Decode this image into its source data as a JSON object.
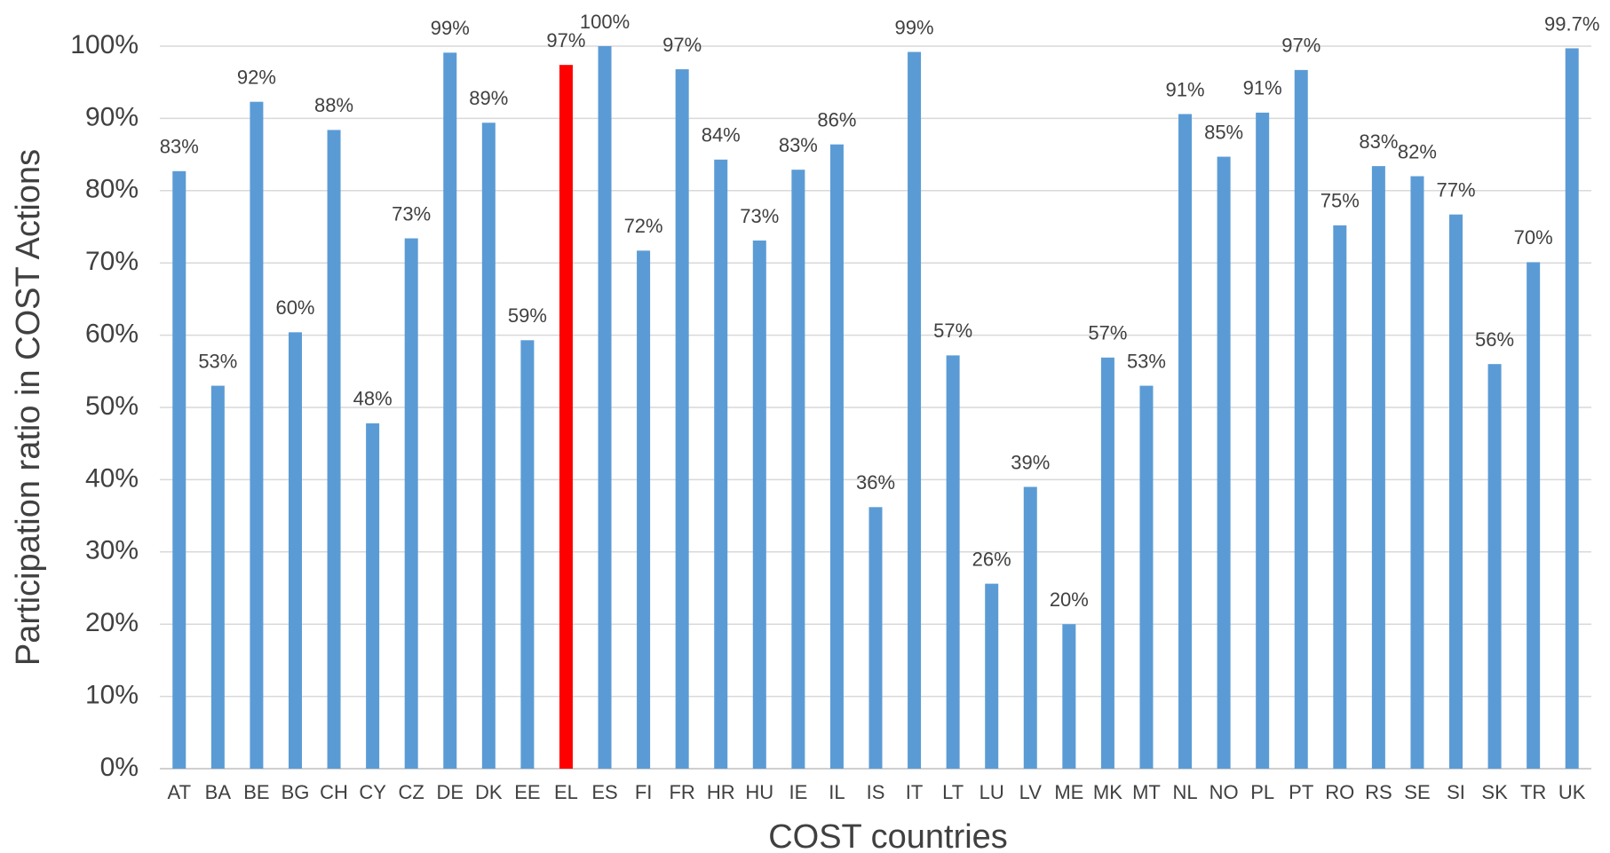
{
  "chart_data": {
    "type": "bar",
    "xlabel": "COST countries",
    "ylabel": "Participation ratio in COST Actions",
    "categories": [
      "AT",
      "BA",
      "BE",
      "BG",
      "CH",
      "CY",
      "CZ",
      "DE",
      "DK",
      "EE",
      "EL",
      "ES",
      "FI",
      "FR",
      "HR",
      "HU",
      "IE",
      "IL",
      "IS",
      "IT",
      "LT",
      "LU",
      "LV",
      "ME",
      "MK",
      "MT",
      "NL",
      "NO",
      "PL",
      "PT",
      "RO",
      "RS",
      "SE",
      "SI",
      "SK",
      "TR",
      "UK"
    ],
    "values": [
      82.7,
      53,
      92.3,
      60.4,
      88.4,
      47.8,
      73.4,
      99.1,
      89.4,
      59.3,
      97.4,
      100,
      71.7,
      96.8,
      84.3,
      73.1,
      82.9,
      86.4,
      36.2,
      99.2,
      57.2,
      25.6,
      39,
      20,
      56.9,
      53,
      90.6,
      84.7,
      90.8,
      96.7,
      75.2,
      83.4,
      82,
      76.7,
      56,
      70.1,
      99.7
    ],
    "value_labels": [
      "83%",
      "53%",
      "92%",
      "60%",
      "88%",
      "48%",
      "73%",
      "99%",
      "89%",
      "59%",
      "97%",
      "100%",
      "72%",
      "97%",
      "84%",
      "73%",
      "83%",
      "86%",
      "36%",
      "99%",
      "57%",
      "26%",
      "39%",
      "20%",
      "57%",
      "53%",
      "91%",
      "85%",
      "91%",
      "97%",
      "75%",
      "83%",
      "82%",
      "77%",
      "56%",
      "70%",
      "99.7%"
    ],
    "colors": [
      "#5b9bd5",
      "#5b9bd5",
      "#5b9bd5",
      "#5b9bd5",
      "#5b9bd5",
      "#5b9bd5",
      "#5b9bd5",
      "#5b9bd5",
      "#5b9bd5",
      "#5b9bd5",
      "#ff0000",
      "#5b9bd5",
      "#5b9bd5",
      "#5b9bd5",
      "#5b9bd5",
      "#5b9bd5",
      "#5b9bd5",
      "#5b9bd5",
      "#5b9bd5",
      "#5b9bd5",
      "#5b9bd5",
      "#5b9bd5",
      "#5b9bd5",
      "#5b9bd5",
      "#5b9bd5",
      "#5b9bd5",
      "#5b9bd5",
      "#5b9bd5",
      "#5b9bd5",
      "#5b9bd5",
      "#5b9bd5",
      "#5b9bd5",
      "#5b9bd5",
      "#5b9bd5",
      "#5b9bd5",
      "#5b9bd5",
      "#5b9bd5"
    ],
    "ylim": [
      0,
      100
    ],
    "yticks": [
      {
        "value": 0,
        "label": "0%"
      },
      {
        "value": 10,
        "label": "10%"
      },
      {
        "value": 20,
        "label": "20%"
      },
      {
        "value": 30,
        "label": "30%"
      },
      {
        "value": 40,
        "label": "40%"
      },
      {
        "value": 50,
        "label": "50%"
      },
      {
        "value": 60,
        "label": "60%"
      },
      {
        "value": 70,
        "label": "70%"
      },
      {
        "value": 80,
        "label": "80%"
      },
      {
        "value": 90,
        "label": "90%"
      },
      {
        "value": 100,
        "label": "100%"
      }
    ],
    "grid": true
  }
}
